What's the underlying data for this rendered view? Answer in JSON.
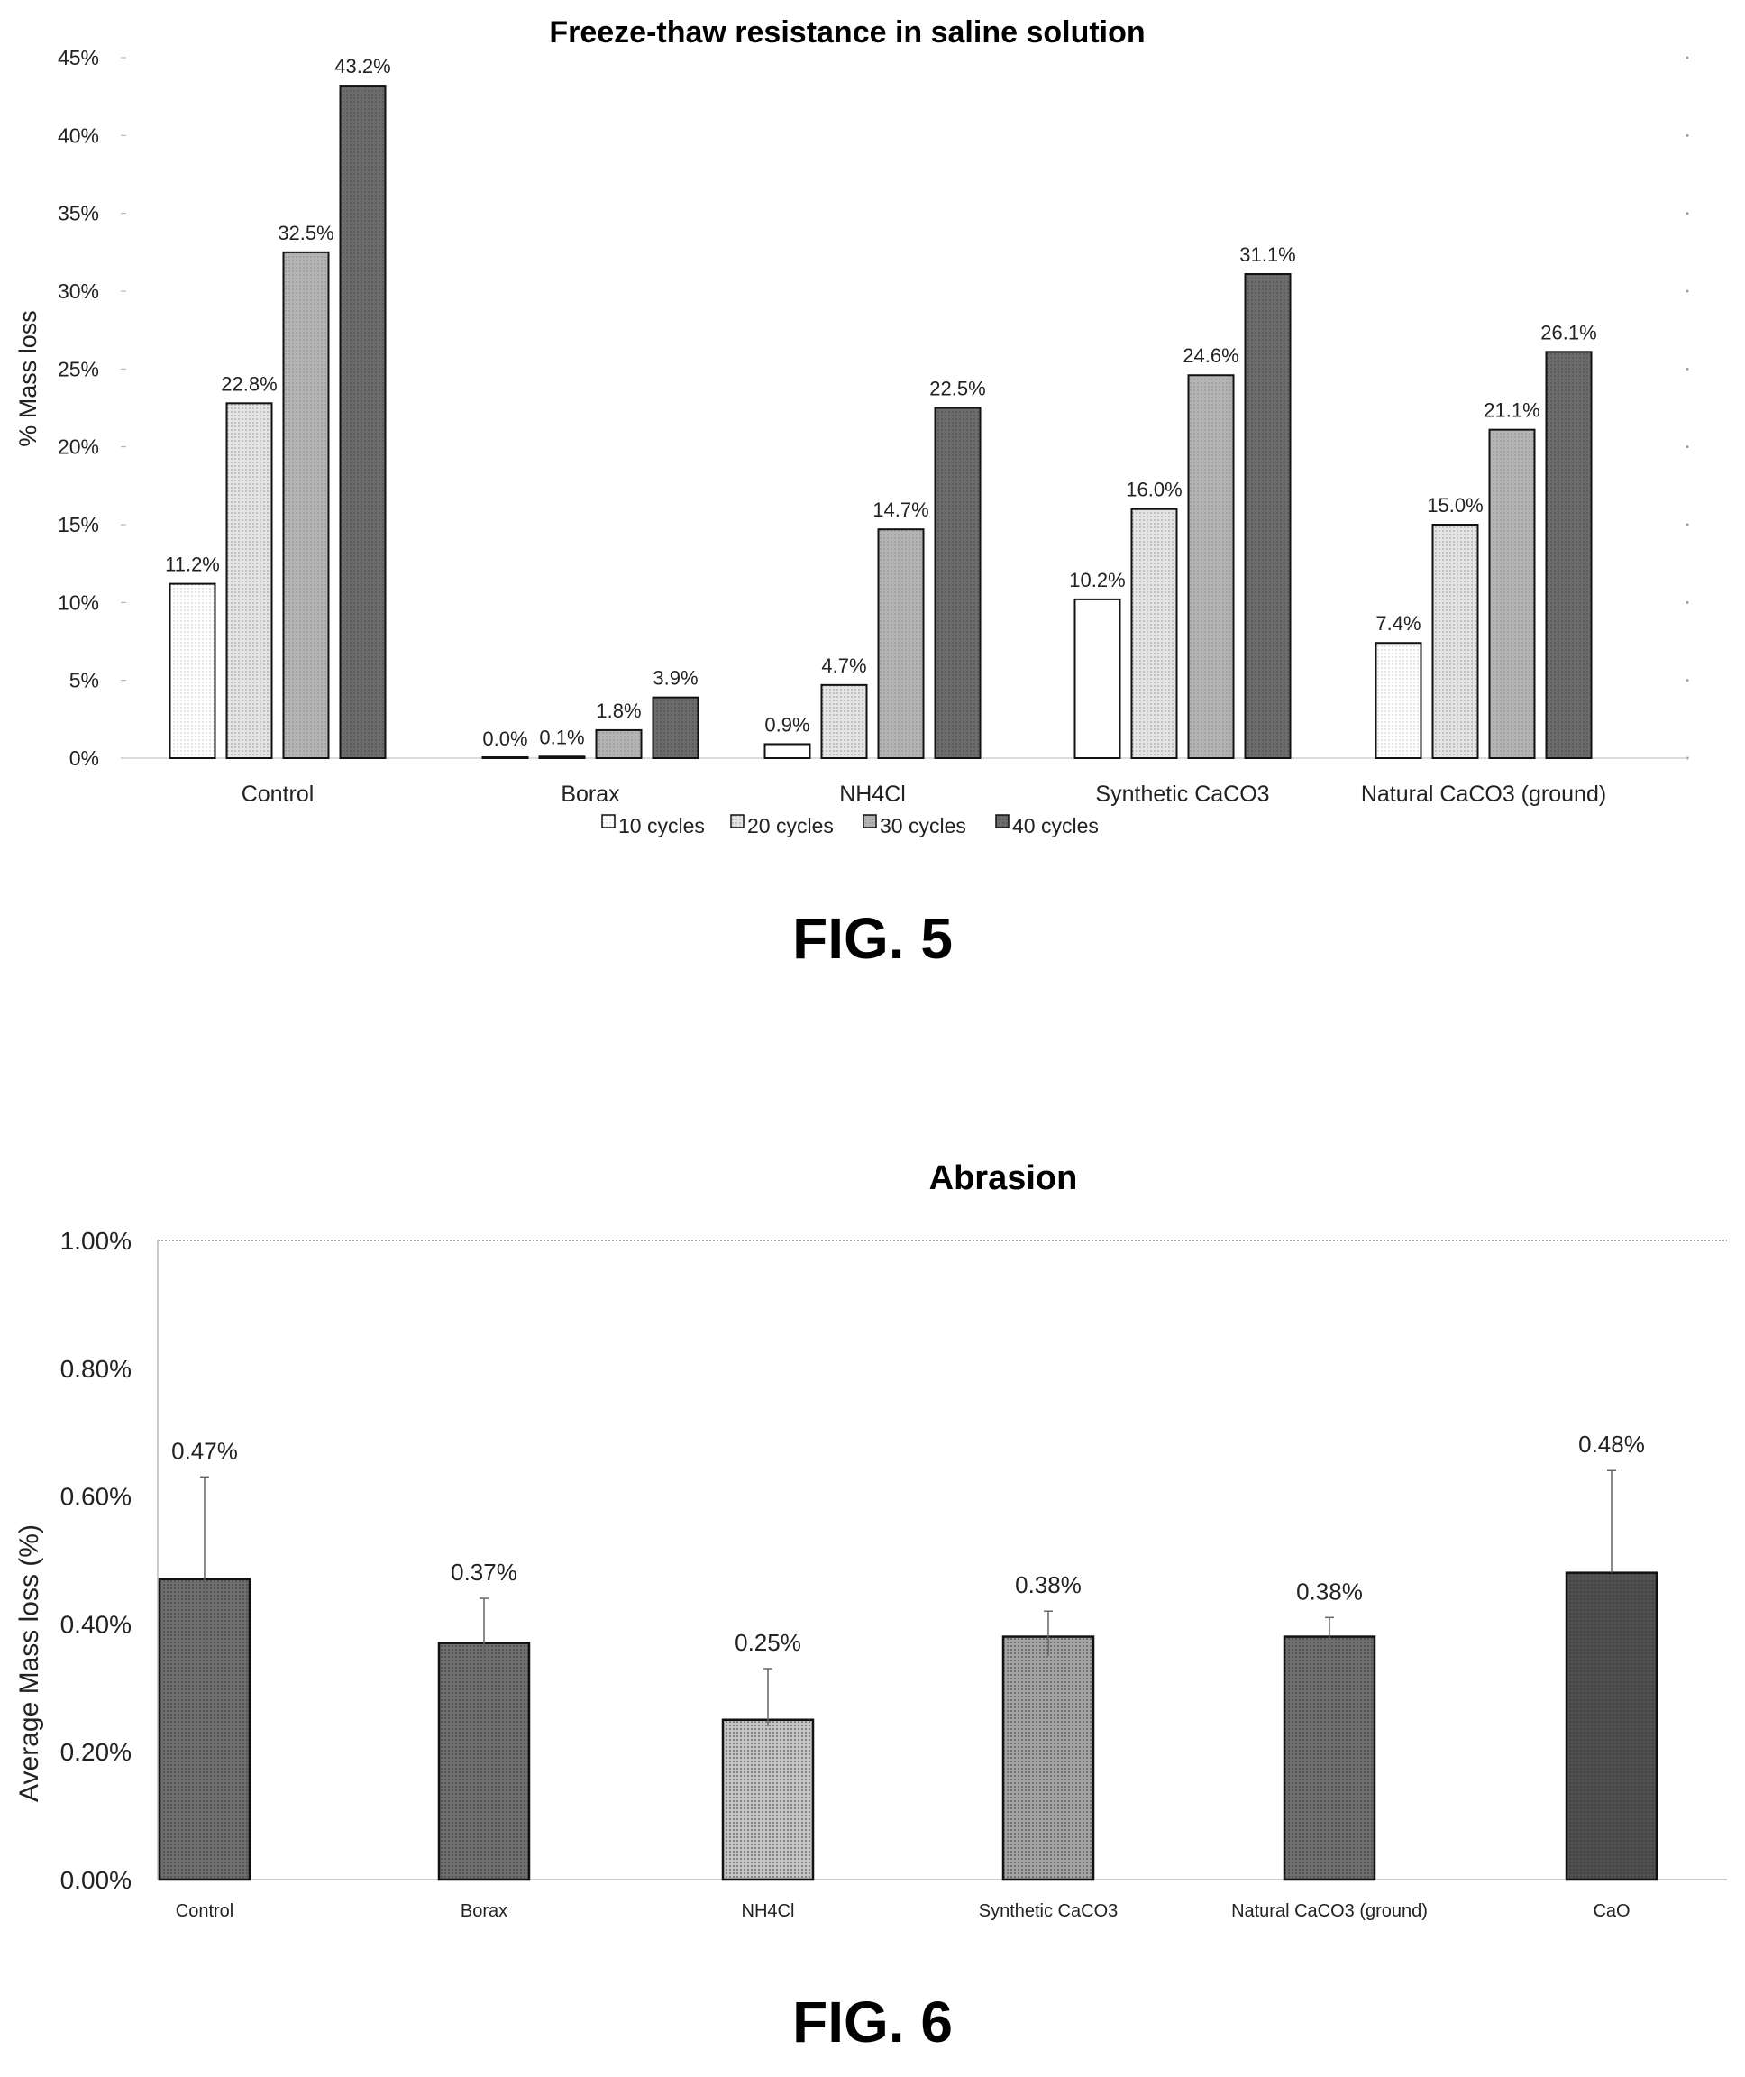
{
  "figures": [
    {
      "label": "FIG. 5"
    },
    {
      "label": "FIG. 6"
    }
  ],
  "chart_data": [
    {
      "type": "bar",
      "title": "Freeze-thaw resistance in saline solution",
      "xlabel": "",
      "ylabel": "%  Mass loss",
      "ylim": [
        0,
        45
      ],
      "yticks": [
        "0%",
        "5%",
        "10%",
        "15%",
        "20%",
        "25%",
        "30%",
        "35%",
        "40%",
        "45%"
      ],
      "categories": [
        "Control",
        "Borax",
        "NH4Cl",
        "Synthetic CaCO3",
        "Natural CaCO3 (ground)"
      ],
      "legend_position": "bottom",
      "series": [
        {
          "name": "10 cycles",
          "values": [
            11.2,
            0.0,
            0.9,
            10.2,
            7.4
          ],
          "labels": [
            "11.2%",
            "0.0%",
            "0.9%",
            "10.2%",
            "7.4%"
          ],
          "fill": "#ffffff"
        },
        {
          "name": "20 cycles",
          "values": [
            22.8,
            0.1,
            4.7,
            16.0,
            15.0
          ],
          "labels": [
            "22.8%",
            "0.1%",
            "4.7%",
            "16.0%",
            "15.0%"
          ],
          "fill": "#e4e4e4"
        },
        {
          "name": "30 cycles",
          "values": [
            32.5,
            1.8,
            14.7,
            24.6,
            21.1
          ],
          "labels": [
            "32.5%",
            "1.8%",
            "14.7%",
            "24.6%",
            "21.1%"
          ],
          "fill": "#b4b4b4"
        },
        {
          "name": "40 cycles",
          "values": [
            43.2,
            3.9,
            22.5,
            31.1,
            26.1
          ],
          "labels": [
            "43.2%",
            "3.9%",
            "22.5%",
            "31.1%",
            "26.1%"
          ],
          "fill": "#6c6c6c"
        }
      ]
    },
    {
      "type": "bar",
      "title": "Abrasion",
      "xlabel": "",
      "ylabel": "Average  Mass loss (%)",
      "ylim": [
        0,
        1.0
      ],
      "yticks": [
        "0.00%",
        "0.20%",
        "0.40%",
        "0.60%",
        "0.80%",
        "1.00%"
      ],
      "categories": [
        "Control",
        "Borax",
        "NH4Cl",
        "Synthetic CaCO3",
        "Natural CaCO3 (ground)",
        "CaO"
      ],
      "values": [
        0.47,
        0.37,
        0.25,
        0.38,
        0.38,
        0.48
      ],
      "labels": [
        "0.47%",
        "0.37%",
        "0.25%",
        "0.38%",
        "0.38%",
        "0.48%"
      ],
      "error_high": [
        0.63,
        0.44,
        0.33,
        0.42,
        0.41,
        0.64
      ],
      "error_low": [
        0.35,
        0.35,
        0.24,
        0.35,
        0.36,
        0.48
      ],
      "fills": [
        "#6e6e6e",
        "#6e6e6e",
        "#c4c4c4",
        "#a4a4a4",
        "#6e6e6e",
        "#505050"
      ]
    }
  ]
}
